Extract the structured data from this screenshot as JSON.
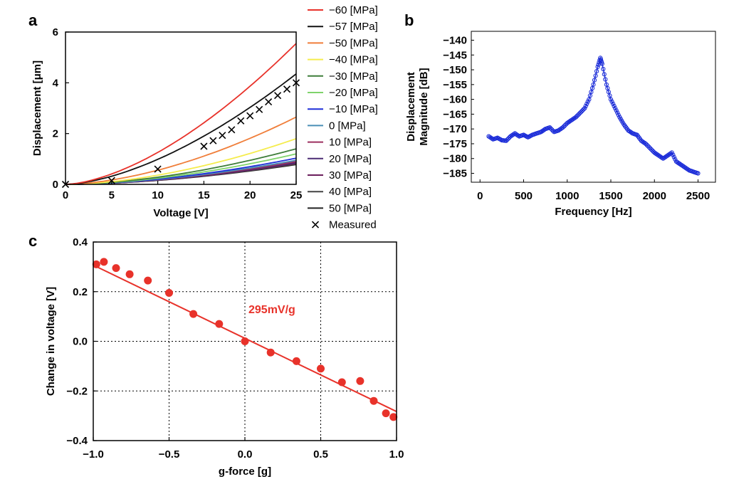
{
  "chart_data": [
    {
      "panel": "a",
      "type": "line",
      "xlabel": "Voltage [V]",
      "ylabel": "Displacement [μm]",
      "xlim": [
        0,
        25
      ],
      "ylim": [
        0,
        6
      ],
      "xticks": [
        "0",
        "5",
        "10",
        "15",
        "20",
        "25"
      ],
      "yticks": [
        "0",
        "2",
        "4",
        "6"
      ],
      "legend_position": "outside-right",
      "series": [
        {
          "name": "−60 [MPa]",
          "color": "#e8322a",
          "end_value": 5.55,
          "exponent": 1.62
        },
        {
          "name": "−57 [MPa]",
          "color": "#111111",
          "end_value": 4.35,
          "exponent": 1.62
        },
        {
          "name": "−50 [MPa]",
          "color": "#f07e3a",
          "end_value": 2.65,
          "exponent": 1.7
        },
        {
          "name": "−40 [MPa]",
          "color": "#f5ec4d",
          "end_value": 1.8,
          "exponent": 1.75
        },
        {
          "name": "−30 [MPa]",
          "color": "#3e7d3a",
          "end_value": 1.4,
          "exponent": 1.75
        },
        {
          "name": "−20 [MPa]",
          "color": "#7fd36b",
          "end_value": 1.2,
          "exponent": 1.75
        },
        {
          "name": "−10 [MPa]",
          "color": "#1f2fd8",
          "end_value": 1.03,
          "exponent": 1.75
        },
        {
          "name": "0 [MPa]",
          "color": "#4a8fb6",
          "end_value": 0.95,
          "exponent": 1.75
        },
        {
          "name": "10 [MPa]",
          "color": "#9c2f5f",
          "end_value": 0.9,
          "exponent": 1.75
        },
        {
          "name": "20 [MPa]",
          "color": "#4a2a74",
          "end_value": 0.86,
          "exponent": 1.75
        },
        {
          "name": "30 [MPa]",
          "color": "#6b1e5c",
          "end_value": 0.83,
          "exponent": 1.75
        },
        {
          "name": "40 [MPa]",
          "color": "#444444",
          "end_value": 0.8,
          "exponent": 1.75
        },
        {
          "name": "50 [MPa]",
          "color": "#222222",
          "end_value": 0.78,
          "exponent": 1.75
        }
      ],
      "measured": {
        "name": "Measured",
        "x": [
          0,
          5,
          10,
          15,
          16,
          17,
          18,
          19,
          20,
          21,
          22,
          23,
          24,
          25
        ],
        "y": [
          0,
          0.15,
          0.6,
          1.5,
          1.72,
          1.93,
          2.15,
          2.5,
          2.7,
          2.95,
          3.25,
          3.5,
          3.75,
          4.0
        ]
      }
    },
    {
      "panel": "b",
      "type": "line",
      "xlabel": "Frequency [Hz]",
      "ylabel_line1": "Displacement",
      "ylabel_line2": "Magnitude [dB]",
      "xlim": [
        -100,
        2700
      ],
      "ylim": [
        -188,
        -137
      ],
      "xticks": [
        "0",
        "500",
        "1000",
        "1500",
        "2000",
        "2500"
      ],
      "yticks": [
        "−140",
        "−145",
        "−150",
        "−155",
        "−160",
        "−165",
        "−170",
        "−175",
        "−180",
        "−185"
      ],
      "series_color": "#1a2bd8",
      "x": [
        100,
        150,
        200,
        250,
        300,
        350,
        400,
        450,
        500,
        550,
        600,
        650,
        700,
        750,
        800,
        850,
        900,
        950,
        1000,
        1050,
        1100,
        1150,
        1200,
        1250,
        1300,
        1350,
        1380,
        1400,
        1450,
        1500,
        1550,
        1600,
        1650,
        1700,
        1750,
        1800,
        1850,
        1900,
        1950,
        2000,
        2050,
        2100,
        2150,
        2200,
        2250,
        2300,
        2350,
        2400,
        2450,
        2500
      ],
      "y": [
        -172.5,
        -173.5,
        -173,
        -173.8,
        -174,
        -172.5,
        -171.5,
        -172.5,
        -172,
        -172.8,
        -172,
        -171.5,
        -171,
        -170,
        -169.5,
        -171,
        -170.5,
        -169.5,
        -168,
        -167,
        -166,
        -164.5,
        -163,
        -160,
        -155,
        -149,
        -146,
        -148,
        -155,
        -160,
        -163,
        -166,
        -168.5,
        -170.5,
        -171.5,
        -172,
        -174,
        -175,
        -176.5,
        -178,
        -179,
        -180,
        -179,
        -178,
        -181,
        -182,
        -183,
        -184,
        -184.5,
        -185
      ]
    },
    {
      "panel": "c",
      "type": "scatter",
      "xlabel": "g-force [g]",
      "ylabel": "Change in voltage [V]",
      "xlim": [
        -1.0,
        1.0
      ],
      "ylim": [
        -0.4,
        0.4
      ],
      "xticks": [
        "−1.0",
        "−0.5",
        "0.0",
        "0.5",
        "1.0"
      ],
      "yticks": [
        "0.4",
        "0.2",
        "0.0",
        "−0.2",
        "−0.4"
      ],
      "grid": true,
      "color": "#e8322a",
      "annotation": "295mV/g",
      "fit_line": {
        "slope": -0.295,
        "intercept": 0.012
      },
      "x": [
        -0.98,
        -0.93,
        -0.85,
        -0.76,
        -0.64,
        -0.5,
        -0.34,
        -0.17,
        0.0,
        0.17,
        0.34,
        0.5,
        0.64,
        0.76,
        0.85,
        0.93,
        0.98
      ],
      "y": [
        0.31,
        0.32,
        0.295,
        0.27,
        0.245,
        0.195,
        0.11,
        0.07,
        0.0,
        -0.045,
        -0.08,
        -0.11,
        -0.165,
        -0.16,
        -0.24,
        -0.29,
        -0.305
      ]
    }
  ],
  "panel_labels": [
    "a",
    "b",
    "c"
  ]
}
